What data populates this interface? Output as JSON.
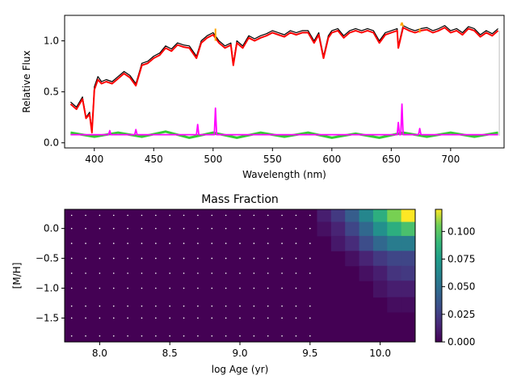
{
  "chart_data": [
    {
      "type": "line",
      "title": "",
      "xlabel": "Wavelength (nm)",
      "ylabel": "Relative Flux",
      "xlim": [
        375,
        745
      ],
      "ylim": [
        -0.05,
        1.25
      ],
      "xticks": [
        400,
        450,
        500,
        550,
        600,
        650,
        700
      ],
      "yticks": [
        0.0,
        0.5,
        1.0
      ],
      "xtick_labels": [
        "400",
        "450",
        "500",
        "550",
        "600",
        "650",
        "700"
      ],
      "ytick_labels": [
        "0.0",
        "0.5",
        "1.0"
      ],
      "grid": false,
      "colors": {
        "data": "#000000",
        "model": "#ff0000",
        "residual": "#33cc33",
        "emission": "#ff00ff",
        "masked": "#ffa500",
        "zero_line": "#808080",
        "end_marker": "#c8c8c8"
      },
      "series": [
        {
          "role": "data",
          "x": [
            380,
            385,
            390,
            393,
            396,
            398,
            400,
            403,
            406,
            410,
            415,
            420,
            425,
            430,
            435,
            440,
            445,
            450,
            455,
            460,
            465,
            470,
            475,
            480,
            486,
            490,
            495,
            500,
            505,
            510,
            515,
            517,
            520,
            525,
            530,
            535,
            540,
            545,
            550,
            555,
            560,
            565,
            570,
            575,
            580,
            585,
            589,
            593,
            597,
            600,
            605,
            610,
            615,
            620,
            625,
            630,
            635,
            640,
            645,
            650,
            655,
            656,
            660,
            665,
            670,
            675,
            680,
            685,
            690,
            695,
            700,
            705,
            710,
            715,
            720,
            725,
            730,
            735,
            740
          ],
          "y": [
            0.4,
            0.35,
            0.45,
            0.25,
            0.3,
            0.12,
            0.55,
            0.65,
            0.6,
            0.62,
            0.6,
            0.65,
            0.7,
            0.66,
            0.58,
            0.78,
            0.8,
            0.85,
            0.88,
            0.95,
            0.92,
            0.98,
            0.96,
            0.95,
            0.85,
            1.0,
            1.05,
            1.08,
            1.0,
            0.95,
            0.98,
            0.78,
            1.0,
            0.95,
            1.05,
            1.02,
            1.05,
            1.07,
            1.1,
            1.08,
            1.06,
            1.1,
            1.08,
            1.1,
            1.1,
            1.0,
            1.08,
            0.85,
            1.05,
            1.1,
            1.12,
            1.05,
            1.1,
            1.12,
            1.1,
            1.12,
            1.1,
            1.0,
            1.08,
            1.1,
            1.12,
            0.95,
            1.15,
            1.12,
            1.1,
            1.12,
            1.13,
            1.1,
            1.12,
            1.15,
            1.1,
            1.12,
            1.08,
            1.14,
            1.12,
            1.06,
            1.1,
            1.07,
            1.12
          ]
        },
        {
          "role": "model",
          "x": [
            380,
            385,
            390,
            393,
            396,
            398,
            400,
            403,
            406,
            410,
            415,
            420,
            425,
            430,
            435,
            440,
            445,
            450,
            455,
            460,
            465,
            470,
            475,
            480,
            486,
            490,
            495,
            500,
            505,
            510,
            515,
            517,
            520,
            525,
            530,
            535,
            540,
            545,
            550,
            555,
            560,
            565,
            570,
            575,
            580,
            585,
            589,
            593,
            597,
            600,
            605,
            610,
            615,
            620,
            625,
            630,
            635,
            640,
            645,
            650,
            655,
            656,
            660,
            665,
            670,
            675,
            680,
            685,
            690,
            695,
            700,
            705,
            710,
            715,
            720,
            725,
            730,
            735,
            740
          ],
          "y": [
            0.38,
            0.33,
            0.43,
            0.24,
            0.28,
            0.1,
            0.52,
            0.62,
            0.58,
            0.6,
            0.58,
            0.63,
            0.68,
            0.64,
            0.56,
            0.76,
            0.78,
            0.83,
            0.86,
            0.93,
            0.9,
            0.96,
            0.94,
            0.93,
            0.83,
            0.98,
            1.03,
            1.06,
            0.98,
            0.93,
            0.96,
            0.76,
            0.98,
            0.93,
            1.03,
            1.0,
            1.03,
            1.05,
            1.08,
            1.06,
            1.04,
            1.08,
            1.06,
            1.08,
            1.08,
            0.98,
            1.06,
            0.83,
            1.03,
            1.08,
            1.1,
            1.03,
            1.08,
            1.1,
            1.08,
            1.1,
            1.08,
            0.98,
            1.06,
            1.08,
            1.1,
            0.93,
            1.13,
            1.1,
            1.08,
            1.1,
            1.11,
            1.08,
            1.1,
            1.13,
            1.08,
            1.1,
            1.06,
            1.12,
            1.1,
            1.04,
            1.08,
            1.05,
            1.1
          ]
        },
        {
          "role": "residual",
          "x": [
            380,
            400,
            420,
            440,
            460,
            480,
            500,
            520,
            540,
            560,
            580,
            600,
            620,
            640,
            660,
            680,
            700,
            720,
            740
          ],
          "y": [
            0.1,
            0.06,
            0.1,
            0.06,
            0.11,
            0.05,
            0.1,
            0.05,
            0.1,
            0.06,
            0.1,
            0.05,
            0.09,
            0.05,
            0.1,
            0.06,
            0.1,
            0.06,
            0.1
          ]
        },
        {
          "role": "emission",
          "x": [
            380,
            412,
            413,
            414,
            434,
            435,
            436,
            486,
            487,
            488,
            501,
            502,
            503,
            600,
            655,
            656,
            657,
            658,
            659,
            660,
            661,
            673,
            674,
            675,
            740
          ],
          "y": [
            0.08,
            0.08,
            0.12,
            0.08,
            0.08,
            0.13,
            0.08,
            0.08,
            0.18,
            0.08,
            0.08,
            0.34,
            0.08,
            0.08,
            0.08,
            0.2,
            0.08,
            0.08,
            0.38,
            0.08,
            0.08,
            0.08,
            0.14,
            0.08,
            0.08
          ]
        },
        {
          "role": "masked",
          "x": [
            502,
            502,
            658,
            659,
            660,
            674,
            674
          ],
          "y": [
            1.0,
            1.12,
            1.15,
            1.18,
            1.14,
            1.08,
            1.12
          ]
        }
      ]
    },
    {
      "type": "heatmap",
      "title": "Mass Fraction",
      "xlabel": "log Age (yr)",
      "ylabel": "[M/H]",
      "xlim": [
        7.75,
        10.25
      ],
      "ylim": [
        -1.9,
        0.32
      ],
      "xticks": [
        8.0,
        8.5,
        9.0,
        9.5,
        10.0
      ],
      "yticks": [
        0.0,
        -0.5,
        -1.0,
        -1.5
      ],
      "xtick_labels": [
        "8.0",
        "8.5",
        "9.0",
        "9.5",
        "10.0"
      ],
      "ytick_labels": [
        "0.0",
        "−0.5",
        "−1.0",
        "−1.5"
      ],
      "colorbar": {
        "vmin": 0.0,
        "vmax": 0.12,
        "ticks": [
          0.0,
          0.025,
          0.05,
          0.075,
          0.1
        ],
        "tick_labels": [
          "0.000",
          "0.025",
          "0.050",
          "0.075",
          "0.100"
        ],
        "colormap": "viridis"
      },
      "grid": false,
      "x_centers": [
        7.8,
        7.9,
        8.0,
        8.1,
        8.2,
        8.3,
        8.4,
        8.5,
        8.6,
        8.7,
        8.8,
        8.9,
        9.0,
        9.1,
        9.2,
        9.3,
        9.4,
        9.5,
        9.6,
        9.7,
        9.8,
        9.9,
        10.0,
        10.1,
        10.2
      ],
      "y_centers": [
        0.22,
        0.0,
        -0.25,
        -0.5,
        -0.75,
        -1.0,
        -1.3,
        -1.5,
        -1.8
      ],
      "point_x": [
        7.8,
        7.9,
        8.0,
        8.1,
        8.2,
        8.3,
        8.4,
        8.5,
        8.6,
        8.7,
        8.8,
        8.9,
        9.0,
        9.1,
        9.2,
        9.3,
        9.4,
        9.5
      ],
      "point_y": [
        0.22,
        0.0,
        -0.25,
        -0.5,
        -0.75,
        -1.0,
        -1.3,
        -1.5,
        -1.8
      ],
      "cells": [
        {
          "x": 9.6,
          "y": 0.22,
          "v": 0.01
        },
        {
          "x": 9.7,
          "y": 0.22,
          "v": 0.02
        },
        {
          "x": 9.8,
          "y": 0.22,
          "v": 0.035
        },
        {
          "x": 9.9,
          "y": 0.22,
          "v": 0.055
        },
        {
          "x": 10.0,
          "y": 0.22,
          "v": 0.075
        },
        {
          "x": 10.1,
          "y": 0.22,
          "v": 0.095
        },
        {
          "x": 10.2,
          "y": 0.22,
          "v": 0.12
        },
        {
          "x": 9.6,
          "y": 0.0,
          "v": 0.005
        },
        {
          "x": 9.7,
          "y": 0.0,
          "v": 0.012
        },
        {
          "x": 9.8,
          "y": 0.0,
          "v": 0.025
        },
        {
          "x": 9.9,
          "y": 0.0,
          "v": 0.04
        },
        {
          "x": 10.0,
          "y": 0.0,
          "v": 0.06
        },
        {
          "x": 10.1,
          "y": 0.0,
          "v": 0.075
        },
        {
          "x": 10.2,
          "y": 0.0,
          "v": 0.085
        },
        {
          "x": 9.7,
          "y": -0.25,
          "v": 0.008
        },
        {
          "x": 9.8,
          "y": -0.25,
          "v": 0.015
        },
        {
          "x": 9.9,
          "y": -0.25,
          "v": 0.028
        },
        {
          "x": 10.0,
          "y": -0.25,
          "v": 0.04
        },
        {
          "x": 10.1,
          "y": -0.25,
          "v": 0.05
        },
        {
          "x": 10.2,
          "y": -0.25,
          "v": 0.05
        },
        {
          "x": 9.8,
          "y": -0.5,
          "v": 0.005
        },
        {
          "x": 9.9,
          "y": -0.5,
          "v": 0.012
        },
        {
          "x": 10.0,
          "y": -0.5,
          "v": 0.02
        },
        {
          "x": 10.1,
          "y": -0.5,
          "v": 0.025
        },
        {
          "x": 10.2,
          "y": -0.5,
          "v": 0.025
        },
        {
          "x": 9.9,
          "y": -0.75,
          "v": 0.005
        },
        {
          "x": 10.0,
          "y": -0.75,
          "v": 0.01
        },
        {
          "x": 10.1,
          "y": -0.75,
          "v": 0.018
        },
        {
          "x": 10.2,
          "y": -0.75,
          "v": 0.02
        },
        {
          "x": 10.0,
          "y": -1.0,
          "v": 0.006
        },
        {
          "x": 10.1,
          "y": -1.0,
          "v": 0.01
        },
        {
          "x": 10.2,
          "y": -1.0,
          "v": 0.01
        },
        {
          "x": 10.1,
          "y": -1.3,
          "v": 0.004
        },
        {
          "x": 10.2,
          "y": -1.3,
          "v": 0.004
        }
      ]
    }
  ]
}
